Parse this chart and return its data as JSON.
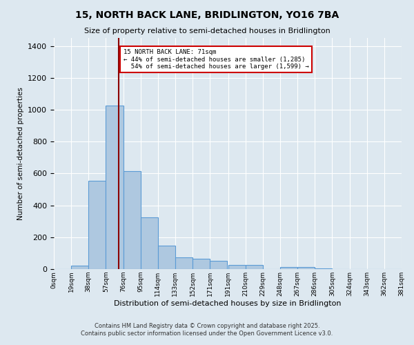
{
  "title1": "15, NORTH BACK LANE, BRIDLINGTON, YO16 7BA",
  "title2": "Size of property relative to semi-detached houses in Bridlington",
  "xlabel": "Distribution of semi-detached houses by size in Bridlington",
  "ylabel": "Number of semi-detached properties",
  "bin_labels": [
    "0sqm",
    "19sqm",
    "38sqm",
    "57sqm",
    "76sqm",
    "95sqm",
    "114sqm",
    "133sqm",
    "152sqm",
    "171sqm",
    "191sqm",
    "210sqm",
    "229sqm",
    "248sqm",
    "267sqm",
    "286sqm",
    "305sqm",
    "324sqm",
    "343sqm",
    "362sqm",
    "381sqm"
  ],
  "bar_values": [
    0,
    20,
    555,
    1025,
    615,
    325,
    148,
    75,
    65,
    52,
    28,
    28,
    0,
    15,
    12,
    5,
    0,
    0,
    0,
    0
  ],
  "bin_edges": [
    0,
    19,
    38,
    57,
    76,
    95,
    114,
    133,
    152,
    171,
    191,
    210,
    229,
    248,
    267,
    286,
    305,
    324,
    343,
    362,
    381
  ],
  "bar_color": "#aec8e0",
  "bar_edge_color": "#5b9bd5",
  "property_size": 71,
  "property_label": "15 NORTH BACK LANE: 71sqm",
  "pct_smaller": 44,
  "pct_larger": 54,
  "count_smaller": 1285,
  "count_larger": 1599,
  "annotation_box_color": "#ffffff",
  "annotation_box_edge": "#cc0000",
  "vline_color": "#8b0000",
  "background_color": "#dde8f0",
  "grid_color": "#ffffff",
  "footer1": "Contains HM Land Registry data © Crown copyright and database right 2025.",
  "footer2": "Contains public sector information licensed under the Open Government Licence v3.0.",
  "ylim": [
    0,
    1450
  ]
}
